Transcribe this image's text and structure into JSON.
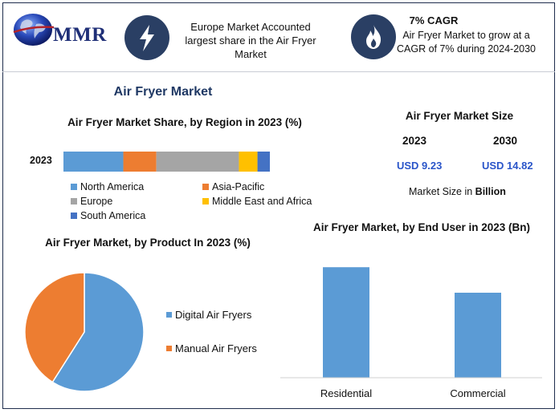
{
  "header": {
    "logo_text": "MMR",
    "fact1": {
      "icon": "lightning-bolt-icon",
      "text": "Europe Market Accounted largest share in the Air Fryer Market"
    },
    "fact2": {
      "icon": "flame-icon",
      "title": "7% CAGR",
      "text": "Air Fryer Market to grow at a CAGR of 7% during 2024-2030"
    }
  },
  "main_title": "Air Fryer Market",
  "market_size": {
    "title": "Air Fryer Market Size",
    "year1": "2023",
    "year2": "2030",
    "value1": "USD 9.23",
    "value2": "USD 14.82",
    "note_prefix": "Market Size in ",
    "note_bold": "Billion"
  },
  "colors": {
    "north_america": "#5b9bd5",
    "asia_pacific": "#ed7d31",
    "europe": "#a5a5a5",
    "middle_east_africa": "#ffc000",
    "south_america": "#4472c4",
    "digital": "#5b9bd5",
    "manual": "#ed7d31",
    "bar": "#5b9bd5"
  },
  "chart_data": [
    {
      "type": "bar",
      "orientation": "horizontal-stacked",
      "title": "Air Fryer Market Share, by Region in 2023 (%)",
      "categories": [
        "2023"
      ],
      "series": [
        {
          "name": "North America",
          "values": [
            29
          ]
        },
        {
          "name": "Asia-Pacific",
          "values": [
            16
          ]
        },
        {
          "name": "Europe",
          "values": [
            40
          ]
        },
        {
          "name": "Middle East and Africa",
          "values": [
            9
          ]
        },
        {
          "name": "South America",
          "values": [
            6
          ]
        }
      ],
      "legend": "bottom",
      "grid": false
    },
    {
      "type": "pie",
      "title": "Air Fryer Market, by Product In 2023 (%)",
      "labels": [
        "Digital Air Fryers",
        "Manual Air Fryers"
      ],
      "values": [
        59,
        41
      ],
      "legend": "right"
    },
    {
      "type": "bar",
      "title": "Air Fryer Market, by End User in 2023 (Bn)",
      "categories": [
        "Residential",
        "Commercial"
      ],
      "values": [
        5.2,
        4.0
      ],
      "ylim": [
        0,
        6
      ],
      "grid": false
    }
  ]
}
